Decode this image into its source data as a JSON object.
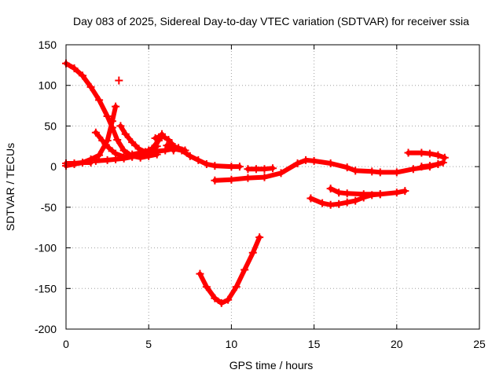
{
  "chart_data": {
    "type": "scatter",
    "title": "Day 083 of 2025, Sidereal Day-to-day VTEC variation (SDTVAR) for receiver ssia",
    "xlabel": "GPS time / hours",
    "ylabel": "SDTVAR / TECUs",
    "xlim": [
      0,
      25
    ],
    "ylim": [
      -200,
      150
    ],
    "xticks": [
      0,
      5,
      10,
      15,
      20,
      25
    ],
    "yticks": [
      -200,
      -150,
      -100,
      -50,
      0,
      50,
      100,
      150
    ],
    "grid": true,
    "marker_color": "#ff0000",
    "series": [
      {
        "name": "arc-1",
        "points": [
          [
            0.0,
            127
          ],
          [
            0.5,
            121
          ],
          [
            1.0,
            112
          ],
          [
            1.5,
            98
          ],
          [
            2.0,
            82
          ],
          [
            2.5,
            62
          ],
          [
            2.8,
            48
          ],
          [
            3.1,
            33
          ],
          [
            3.5,
            20
          ],
          [
            4.0,
            13
          ],
          [
            4.5,
            11
          ],
          [
            5.0,
            13
          ],
          [
            5.5,
            15
          ]
        ]
      },
      {
        "name": "arc-2",
        "points": [
          [
            0.0,
            1
          ],
          [
            0.5,
            3
          ],
          [
            1.0,
            5
          ],
          [
            1.5,
            9
          ],
          [
            2.0,
            14
          ],
          [
            2.5,
            32
          ],
          [
            2.8,
            56
          ],
          [
            3.0,
            74
          ]
        ]
      },
      {
        "name": "arc-3",
        "points": [
          [
            0.0,
            4
          ],
          [
            0.5,
            4
          ],
          [
            1.0,
            5
          ],
          [
            1.5,
            5
          ]
        ]
      },
      {
        "name": "arc-4",
        "points": [
          [
            1.8,
            42
          ],
          [
            2.2,
            32
          ],
          [
            2.6,
            23
          ],
          [
            3.0,
            16
          ],
          [
            3.5,
            12
          ],
          [
            4.0,
            15
          ],
          [
            4.5,
            17
          ],
          [
            5.0,
            20
          ],
          [
            5.5,
            25
          ]
        ]
      },
      {
        "name": "arc-5",
        "points": [
          [
            3.2,
            106
          ]
        ]
      },
      {
        "name": "arc-6",
        "points": [
          [
            3.3,
            50
          ],
          [
            3.6,
            40
          ],
          [
            4.0,
            30
          ],
          [
            4.4,
            22
          ],
          [
            4.8,
            18
          ],
          [
            5.2,
            22
          ],
          [
            5.6,
            32
          ],
          [
            5.8,
            40
          ]
        ]
      },
      {
        "name": "arc-7",
        "points": [
          [
            1.8,
            7
          ],
          [
            2.5,
            8
          ],
          [
            3.0,
            9
          ],
          [
            3.5,
            10
          ],
          [
            4.0,
            12
          ],
          [
            4.5,
            14
          ],
          [
            5.0,
            17
          ],
          [
            5.5,
            19
          ],
          [
            6.0,
            20
          ],
          [
            6.5,
            22
          ],
          [
            7.0,
            20
          ],
          [
            7.5,
            13
          ],
          [
            8.0,
            8
          ],
          [
            8.5,
            3
          ],
          [
            9.0,
            1
          ],
          [
            10.0,
            0
          ],
          [
            10.5,
            0
          ]
        ]
      },
      {
        "name": "arc-8",
        "points": [
          [
            5.4,
            35
          ],
          [
            5.8,
            38
          ],
          [
            6.2,
            33
          ],
          [
            6.4,
            28
          ],
          [
            6.5,
            20
          ]
        ]
      },
      {
        "name": "arc-9",
        "points": [
          [
            6.1,
            26
          ],
          [
            6.5,
            25
          ],
          [
            6.8,
            23
          ],
          [
            7.2,
            20
          ]
        ]
      },
      {
        "name": "arc-10",
        "points": [
          [
            8.1,
            -132
          ],
          [
            8.5,
            -148
          ],
          [
            9.0,
            -162
          ],
          [
            9.4,
            -168
          ],
          [
            9.8,
            -164
          ],
          [
            10.3,
            -148
          ],
          [
            10.8,
            -127
          ],
          [
            11.3,
            -106
          ],
          [
            11.7,
            -87
          ]
        ]
      },
      {
        "name": "arc-11",
        "points": [
          [
            9.0,
            -17
          ],
          [
            10.0,
            -16
          ],
          [
            11.0,
            -14
          ],
          [
            12.0,
            -13
          ],
          [
            13.0,
            -8
          ],
          [
            14.0,
            4
          ],
          [
            14.5,
            8
          ],
          [
            15.0,
            7
          ],
          [
            16.0,
            4
          ],
          [
            17.0,
            -1
          ],
          [
            17.5,
            -5
          ],
          [
            18.5,
            -6
          ],
          [
            19.0,
            -7
          ],
          [
            20.0,
            -7
          ],
          [
            21.0,
            -3
          ],
          [
            22.0,
            0
          ],
          [
            22.5,
            3
          ],
          [
            22.8,
            5
          ]
        ]
      },
      {
        "name": "arc-12",
        "points": [
          [
            11.0,
            -3
          ],
          [
            11.5,
            -3
          ],
          [
            12.0,
            -3
          ],
          [
            12.5,
            -2
          ]
        ]
      },
      {
        "name": "arc-13",
        "points": [
          [
            14.8,
            -39
          ],
          [
            15.5,
            -45
          ],
          [
            16.0,
            -47
          ],
          [
            16.5,
            -46
          ],
          [
            17.0,
            -44
          ],
          [
            17.5,
            -42
          ],
          [
            18.0,
            -38
          ],
          [
            18.5,
            -35
          ],
          [
            19.0,
            -34
          ]
        ]
      },
      {
        "name": "arc-14",
        "points": [
          [
            16.0,
            -27
          ],
          [
            16.5,
            -32
          ],
          [
            17.0,
            -33
          ],
          [
            18.0,
            -34
          ],
          [
            19.0,
            -34
          ],
          [
            20.0,
            -32
          ],
          [
            20.5,
            -30
          ]
        ]
      },
      {
        "name": "arc-15",
        "points": [
          [
            20.7,
            17
          ],
          [
            21.5,
            17
          ],
          [
            22.0,
            16
          ],
          [
            22.5,
            14
          ],
          [
            22.9,
            11
          ]
        ]
      },
      {
        "name": "arc-16",
        "points": [
          [
            21.5,
            0
          ],
          [
            22.0,
            1
          ],
          [
            22.5,
            3
          ]
        ]
      }
    ]
  }
}
